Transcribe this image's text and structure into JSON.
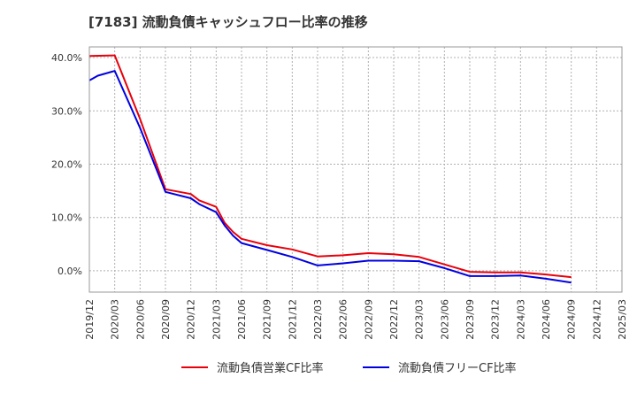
{
  "chart_data": {
    "type": "line",
    "title": "[7183]  流動負債キャッシュフロー比率の推移",
    "xlabel": "",
    "ylabel": "",
    "ylim": [
      -4,
      42
    ],
    "yticks": [
      0,
      10,
      20,
      30,
      40
    ],
    "ytick_labels": [
      "0.0%",
      "10.0%",
      "20.0%",
      "30.0%",
      "40.0%"
    ],
    "xlim": [
      "2019-12",
      "2025-03"
    ],
    "xtick_labels": [
      "2019/12",
      "2020/03",
      "2020/06",
      "2020/09",
      "2020/12",
      "2021/03",
      "2021/06",
      "2021/09",
      "2021/12",
      "2022/03",
      "2022/06",
      "2022/09",
      "2022/12",
      "2023/03",
      "2023/06",
      "2023/09",
      "2023/12",
      "2024/03",
      "2024/06",
      "2024/09",
      "2024/12",
      "2025/03"
    ],
    "grid": true,
    "legend_position": "bottom",
    "series": [
      {
        "name": "流動負債営業CF比率",
        "color": "#e8000b",
        "points": [
          [
            "2019-12",
            40.3
          ],
          [
            "2020-03",
            40.4
          ],
          [
            "2020-06",
            28.5
          ],
          [
            "2020-09",
            15.3
          ],
          [
            "2020-12",
            14.4
          ],
          [
            "2021-01",
            13.2
          ],
          [
            "2021-03",
            12.0
          ],
          [
            "2021-04",
            9.0
          ],
          [
            "2021-05",
            7.3
          ],
          [
            "2021-06",
            6.0
          ],
          [
            "2021-09",
            4.8
          ],
          [
            "2021-12",
            4.0
          ],
          [
            "2022-03",
            2.7
          ],
          [
            "2022-06",
            2.9
          ],
          [
            "2022-09",
            3.3
          ],
          [
            "2022-12",
            3.1
          ],
          [
            "2023-03",
            2.6
          ],
          [
            "2023-06",
            1.2
          ],
          [
            "2023-09",
            -0.2
          ],
          [
            "2023-12",
            -0.3
          ],
          [
            "2024-03",
            -0.3
          ],
          [
            "2024-06",
            -0.7
          ],
          [
            "2024-09",
            -1.2
          ]
        ]
      },
      {
        "name": "流動負債フリーCF比率",
        "color": "#0000e0",
        "points": [
          [
            "2019-12",
            35.7
          ],
          [
            "2020-01",
            36.6
          ],
          [
            "2020-03",
            37.5
          ],
          [
            "2020-06",
            26.8
          ],
          [
            "2020-09",
            14.8
          ],
          [
            "2020-12",
            13.6
          ],
          [
            "2021-01",
            12.5
          ],
          [
            "2021-03",
            11.0
          ],
          [
            "2021-04",
            8.5
          ],
          [
            "2021-05",
            6.6
          ],
          [
            "2021-06",
            5.2
          ],
          [
            "2021-09",
            3.9
          ],
          [
            "2021-12",
            2.6
          ],
          [
            "2022-03",
            1.0
          ],
          [
            "2022-06",
            1.4
          ],
          [
            "2022-09",
            1.9
          ],
          [
            "2022-12",
            1.9
          ],
          [
            "2023-03",
            1.8
          ],
          [
            "2023-06",
            0.5
          ],
          [
            "2023-09",
            -1.0
          ],
          [
            "2023-12",
            -1.0
          ],
          [
            "2024-03",
            -0.9
          ],
          [
            "2024-06",
            -1.5
          ],
          [
            "2024-09",
            -2.2
          ]
        ]
      }
    ]
  }
}
